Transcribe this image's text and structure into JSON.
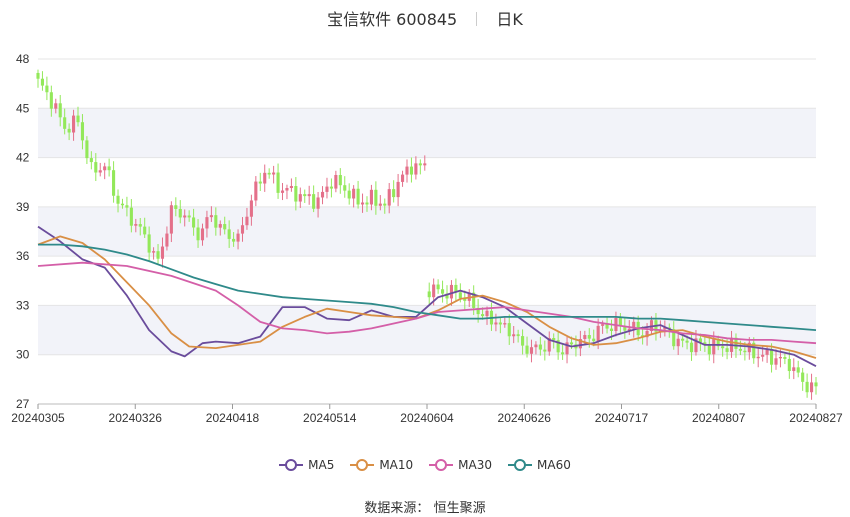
{
  "title": {
    "stock": "宝信软件 600845",
    "period": "日K"
  },
  "source_label": "数据来源：",
  "source_value": "恒生聚源",
  "colors": {
    "up": "#e4708a",
    "down": "#93e85a",
    "MA5": "#6a4c9c",
    "MA10": "#d98f45",
    "MA30": "#d45fa8",
    "MA60": "#2f8a8a",
    "band": "#f2f3f9",
    "grid": "#e5e5e5"
  },
  "chart_data": {
    "type": "candlestick",
    "ylim": [
      27,
      48
    ],
    "yticks": [
      27,
      30,
      33,
      36,
      39,
      42,
      45,
      48
    ],
    "xticks": [
      "20240305",
      "20240326",
      "20240418",
      "20240514",
      "20240604",
      "20240626",
      "20240717",
      "20240807",
      "20240827"
    ],
    "legend_position": "bottom",
    "series_names": [
      "MA5",
      "MA10",
      "MA30",
      "MA60"
    ],
    "segments": [
      {
        "start": 0,
        "count": 88,
        "start_close": 46.6,
        "end_close": 41.4,
        "anchors": [
          [
            0,
            46.6
          ],
          [
            3,
            45.5
          ],
          [
            6,
            43.8
          ],
          [
            9,
            44.2
          ],
          [
            12,
            41.2
          ],
          [
            15,
            41.5
          ],
          [
            18,
            39.3
          ],
          [
            21,
            38.3
          ],
          [
            24,
            37.2
          ],
          [
            27,
            35.6
          ],
          [
            30,
            38.8
          ],
          [
            33,
            38.5
          ],
          [
            36,
            37.3
          ],
          [
            39,
            38.4
          ],
          [
            42,
            37.4
          ],
          [
            45,
            37.0
          ],
          [
            48,
            39.5
          ],
          [
            51,
            41.3
          ],
          [
            54,
            40.2
          ],
          [
            57,
            39.9
          ],
          [
            60,
            39.6
          ],
          [
            63,
            39.3
          ],
          [
            66,
            40.7
          ],
          [
            69,
            40.1
          ],
          [
            72,
            39.3
          ],
          [
            75,
            39.5
          ],
          [
            78,
            39.2
          ],
          [
            81,
            40.5
          ],
          [
            84,
            41.5
          ],
          [
            87,
            41.4
          ]
        ]
      },
      {
        "start": 88,
        "count": 88,
        "start_close": 34.0,
        "end_close": 27.9,
        "anchors": [
          [
            88,
            34.0
          ],
          [
            91,
            33.8
          ],
          [
            94,
            33.8
          ],
          [
            97,
            33.3
          ],
          [
            100,
            32.4
          ],
          [
            103,
            32.0
          ],
          [
            106,
            31.5
          ],
          [
            109,
            30.5
          ],
          [
            112,
            30.3
          ],
          [
            115,
            30.8
          ],
          [
            118,
            30.3
          ],
          [
            121,
            30.8
          ],
          [
            124,
            31.0
          ],
          [
            127,
            31.7
          ],
          [
            130,
            31.8
          ],
          [
            133,
            31.6
          ],
          [
            136,
            31.3
          ],
          [
            139,
            31.8
          ],
          [
            142,
            31.2
          ],
          [
            145,
            30.7
          ],
          [
            148,
            30.7
          ],
          [
            151,
            30.5
          ],
          [
            154,
            30.5
          ],
          [
            157,
            30.5
          ],
          [
            160,
            30.2
          ],
          [
            163,
            29.9
          ],
          [
            166,
            29.8
          ],
          [
            169,
            29.5
          ],
          [
            172,
            28.3
          ],
          [
            175,
            27.9
          ]
        ]
      }
    ],
    "ma_anchors": {
      "MA5": [
        [
          0,
          37.8
        ],
        [
          5,
          36.9
        ],
        [
          10,
          35.8
        ],
        [
          15,
          35.3
        ],
        [
          20,
          33.6
        ],
        [
          25,
          31.5
        ],
        [
          30,
          30.2
        ],
        [
          33,
          29.9
        ],
        [
          37,
          30.7
        ],
        [
          40,
          30.8
        ],
        [
          45,
          30.7
        ],
        [
          50,
          31.1
        ],
        [
          55,
          32.9
        ],
        [
          60,
          32.9
        ],
        [
          65,
          32.2
        ],
        [
          70,
          32.1
        ],
        [
          75,
          32.7
        ],
        [
          80,
          32.3
        ],
        [
          85,
          32.3
        ],
        [
          90,
          33.5
        ],
        [
          95,
          33.9
        ],
        [
          100,
          33.5
        ],
        [
          105,
          32.9
        ],
        [
          110,
          31.9
        ],
        [
          115,
          30.9
        ],
        [
          120,
          30.5
        ],
        [
          125,
          30.7
        ],
        [
          130,
          31.2
        ],
        [
          135,
          31.6
        ],
        [
          140,
          31.8
        ],
        [
          145,
          31.2
        ],
        [
          150,
          30.6
        ],
        [
          155,
          30.6
        ],
        [
          160,
          30.5
        ],
        [
          165,
          30.3
        ],
        [
          170,
          30.0
        ],
        [
          175,
          29.3
        ]
      ],
      "MA10": [
        [
          0,
          36.7
        ],
        [
          5,
          37.2
        ],
        [
          10,
          36.8
        ],
        [
          15,
          35.8
        ],
        [
          20,
          34.4
        ],
        [
          25,
          33.0
        ],
        [
          30,
          31.3
        ],
        [
          34,
          30.5
        ],
        [
          40,
          30.4
        ],
        [
          45,
          30.6
        ],
        [
          50,
          30.8
        ],
        [
          55,
          31.7
        ],
        [
          60,
          32.3
        ],
        [
          65,
          32.8
        ],
        [
          70,
          32.6
        ],
        [
          75,
          32.4
        ],
        [
          80,
          32.3
        ],
        [
          85,
          32.2
        ],
        [
          90,
          32.7
        ],
        [
          95,
          33.4
        ],
        [
          100,
          33.6
        ],
        [
          105,
          33.2
        ],
        [
          110,
          32.6
        ],
        [
          115,
          31.7
        ],
        [
          120,
          31.0
        ],
        [
          125,
          30.6
        ],
        [
          130,
          30.7
        ],
        [
          135,
          31.0
        ],
        [
          140,
          31.4
        ],
        [
          145,
          31.5
        ],
        [
          150,
          31.1
        ],
        [
          155,
          30.8
        ],
        [
          160,
          30.6
        ],
        [
          165,
          30.5
        ],
        [
          170,
          30.2
        ],
        [
          175,
          29.8
        ]
      ],
      "MA30": [
        [
          0,
          35.4
        ],
        [
          10,
          35.6
        ],
        [
          20,
          35.4
        ],
        [
          30,
          34.8
        ],
        [
          40,
          33.9
        ],
        [
          45,
          33.0
        ],
        [
          50,
          32.0
        ],
        [
          55,
          31.6
        ],
        [
          60,
          31.5
        ],
        [
          65,
          31.3
        ],
        [
          70,
          31.4
        ],
        [
          75,
          31.6
        ],
        [
          80,
          31.9
        ],
        [
          85,
          32.2
        ],
        [
          90,
          32.6
        ],
        [
          95,
          32.7
        ],
        [
          100,
          32.8
        ],
        [
          105,
          32.9
        ],
        [
          110,
          32.7
        ],
        [
          115,
          32.5
        ],
        [
          120,
          32.3
        ],
        [
          125,
          32.0
        ],
        [
          130,
          31.8
        ],
        [
          135,
          31.6
        ],
        [
          140,
          31.5
        ],
        [
          145,
          31.3
        ],
        [
          150,
          31.2
        ],
        [
          155,
          31.0
        ],
        [
          160,
          30.9
        ],
        [
          165,
          30.9
        ],
        [
          170,
          30.8
        ],
        [
          175,
          30.7
        ]
      ],
      "MA60": [
        [
          0,
          36.7
        ],
        [
          5,
          36.7
        ],
        [
          10,
          36.6
        ],
        [
          15,
          36.4
        ],
        [
          20,
          36.1
        ],
        [
          25,
          35.7
        ],
        [
          30,
          35.2
        ],
        [
          35,
          34.7
        ],
        [
          40,
          34.3
        ],
        [
          45,
          33.9
        ],
        [
          50,
          33.7
        ],
        [
          55,
          33.5
        ],
        [
          60,
          33.4
        ],
        [
          65,
          33.3
        ],
        [
          70,
          33.2
        ],
        [
          75,
          33.1
        ],
        [
          80,
          32.9
        ],
        [
          85,
          32.6
        ],
        [
          90,
          32.4
        ],
        [
          95,
          32.2
        ],
        [
          100,
          32.2
        ],
        [
          105,
          32.3
        ],
        [
          110,
          32.3
        ],
        [
          115,
          32.3
        ],
        [
          120,
          32.3
        ],
        [
          125,
          32.3
        ],
        [
          130,
          32.3
        ],
        [
          135,
          32.2
        ],
        [
          140,
          32.2
        ],
        [
          145,
          32.1
        ],
        [
          150,
          32.0
        ],
        [
          155,
          31.9
        ],
        [
          160,
          31.8
        ],
        [
          165,
          31.7
        ],
        [
          170,
          31.6
        ],
        [
          175,
          31.5
        ]
      ]
    }
  }
}
